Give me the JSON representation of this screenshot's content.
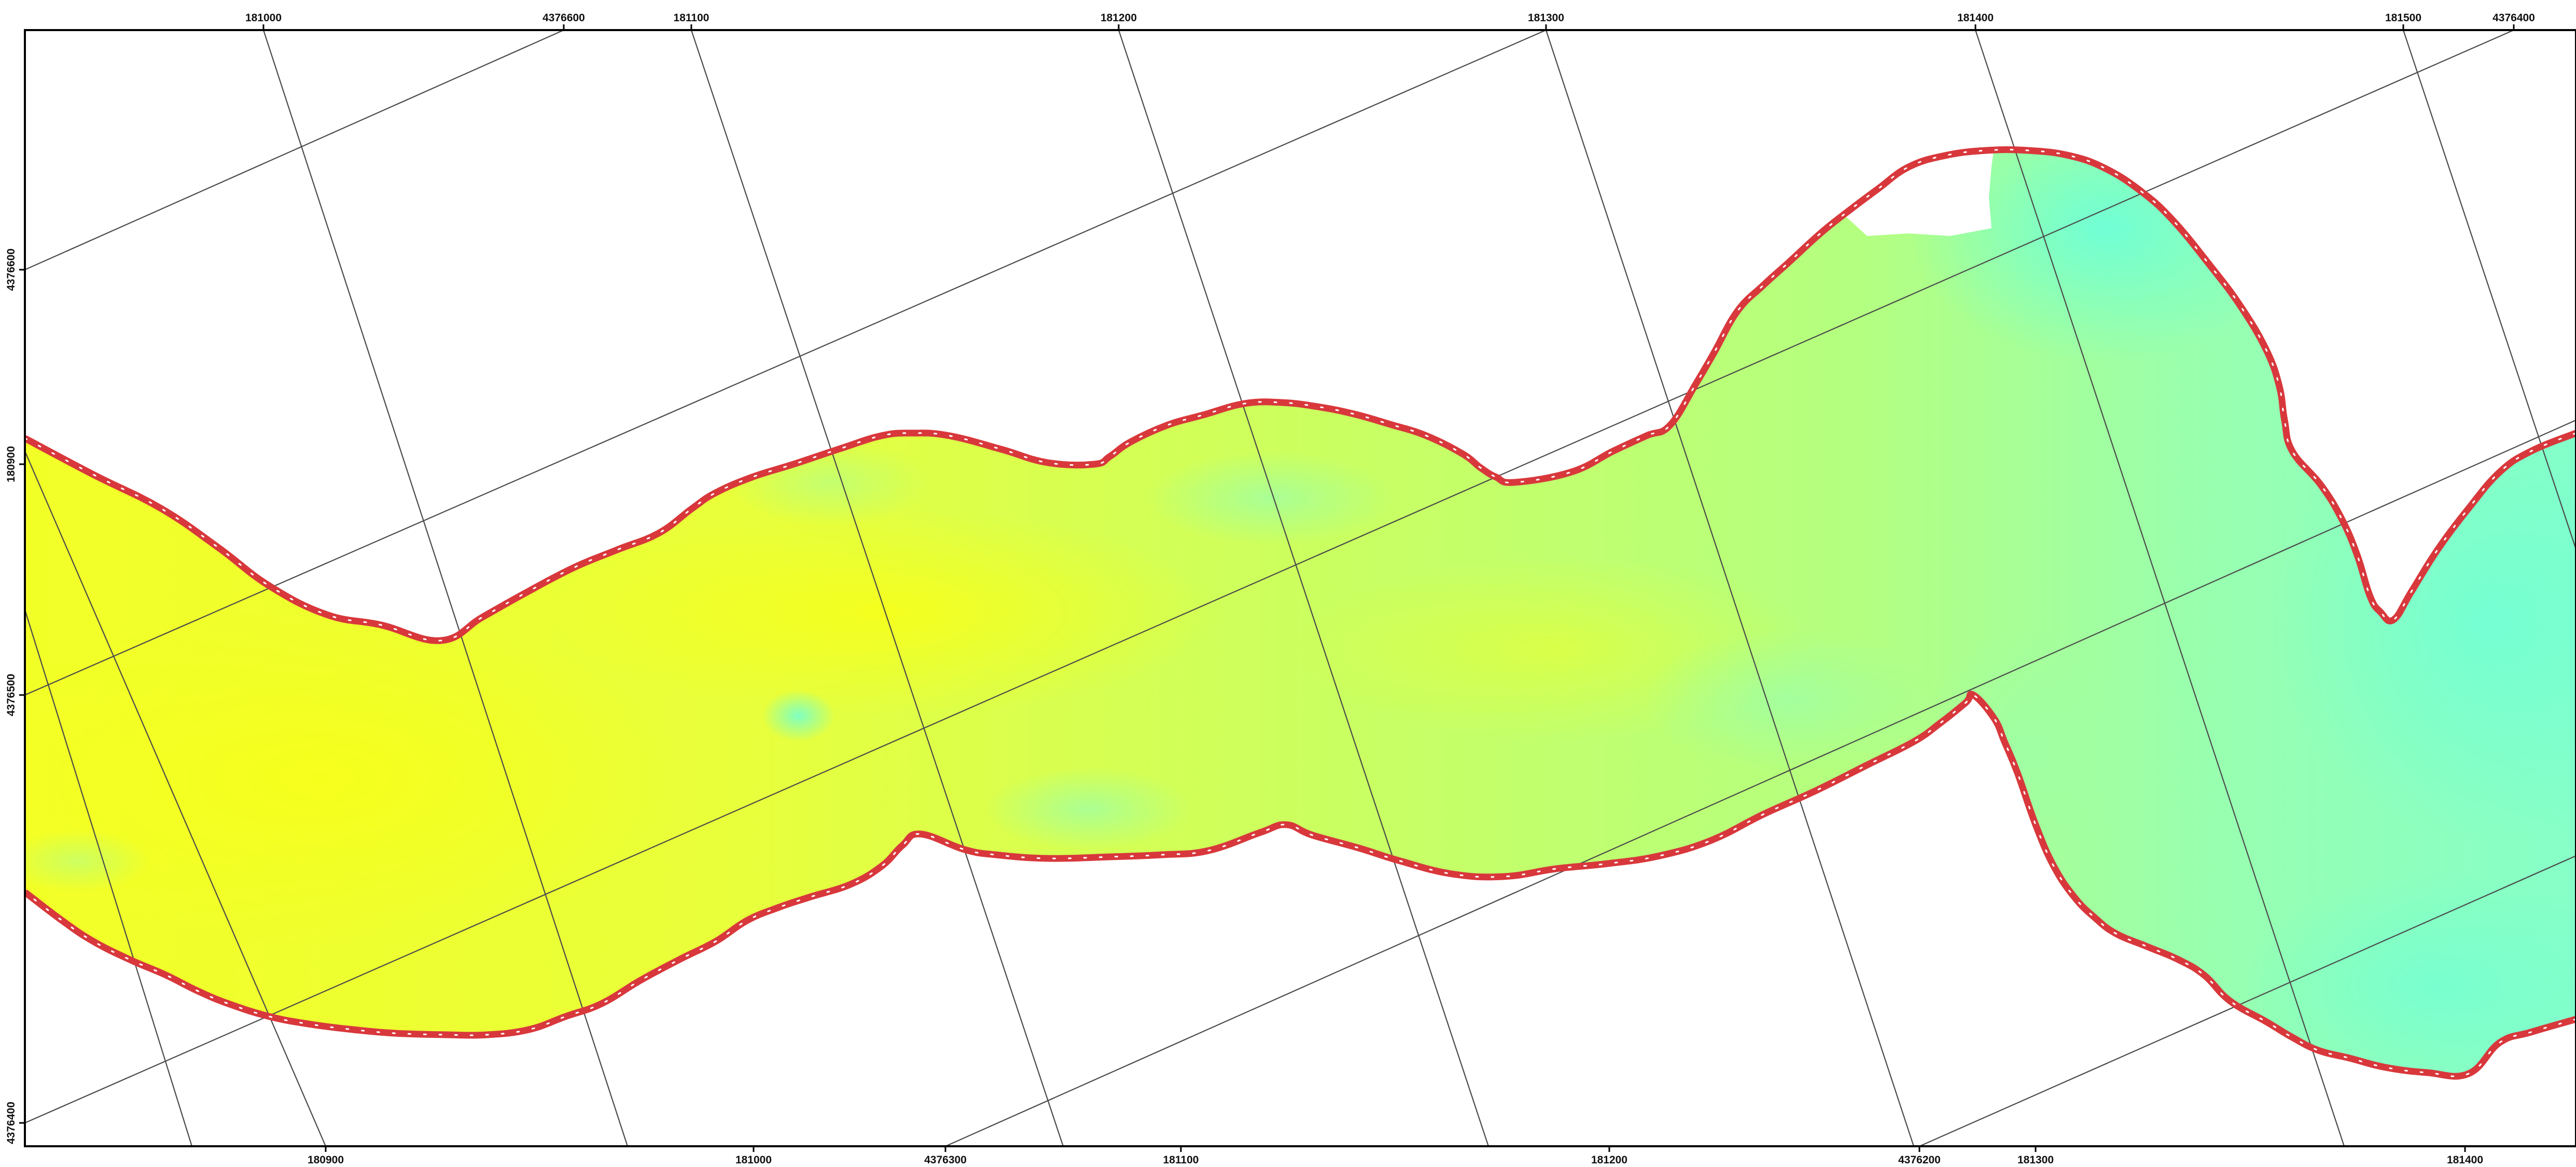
{
  "map": {
    "raster_colormap": {
      "low": "#f5ff2a",
      "mid": "#c8ff6a",
      "high": "#6effd8"
    },
    "boundary": {
      "outer_color": "#d8383c",
      "inner_dash_color": "#ffffff"
    },
    "grid_color": "#4a4a4a",
    "frame_color": "#000000"
  },
  "labels": {
    "top": [
      "181000",
      "4376600",
      "181100",
      "181200",
      "181300",
      "181400",
      "181500",
      "4376400"
    ],
    "bottom": [
      "180900",
      "181000",
      "4376300",
      "181100",
      "181200",
      "4376200",
      "181300",
      "181400"
    ],
    "left": [
      "4376600",
      "180900",
      "4376500",
      "4376400"
    ]
  }
}
